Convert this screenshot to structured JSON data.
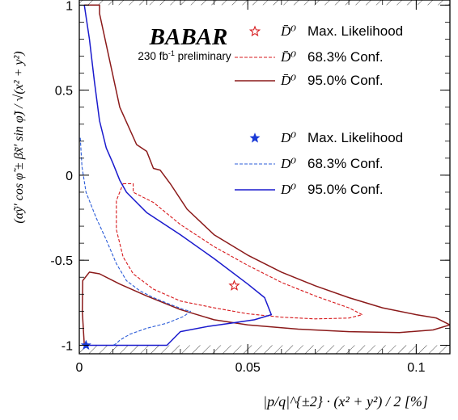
{
  "chart_data": {
    "type": "line",
    "xlabel": "|p/q|^{±2} · (x² + y²) / 2 [%]",
    "ylabel": "(αỹ′ cos φ̃ ± βx̃′ sin φ̃) / √(x² + y²)",
    "xlim": [
      0,
      0.11
    ],
    "ylim": [
      -1.05,
      1.03
    ],
    "x_ticks": [
      0,
      0.05,
      0.1
    ],
    "x_tick_labels": [
      "0",
      "0.05",
      "0.1"
    ],
    "y_ticks": [
      1,
      0.5,
      0,
      -0.5,
      -1
    ],
    "y_tick_labels": [
      "1",
      "0.5",
      "0",
      "-0.5",
      "-1"
    ],
    "grid": false,
    "physical_boundary_hatching": "y > 1 and y < -1",
    "logo": {
      "text": "BABAR",
      "subtitle_base": "230 fb",
      "subtitle_sup": "-1",
      "subtitle_rest": " preliminary"
    },
    "legend": [
      {
        "label_particle": "D̄⁰",
        "label_text": "Max. Likelihood",
        "marker": "open-star",
        "color": "#d7191c"
      },
      {
        "label_particle": "D̄⁰",
        "label_text": "68.3% Conf.",
        "style": "dashed",
        "color": "#d7191c"
      },
      {
        "label_particle": "D̄⁰",
        "label_text": "95.0% Conf.",
        "style": "solid",
        "color": "#8b1a1a"
      },
      {
        "label_particle": "D⁰",
        "label_text": "Max. Likelihood",
        "marker": "filled-star",
        "color": "#1a3ad7"
      },
      {
        "label_particle": "D⁰",
        "label_text": "68.3% Conf.",
        "style": "dashed",
        "color": "#2b5cd8"
      },
      {
        "label_particle": "D⁰",
        "label_text": "95.0% Conf.",
        "style": "solid",
        "color": "#1a1acd"
      }
    ],
    "series": [
      {
        "name": "D̄⁰ 95.0% Conf.",
        "color": "#8b1a1a",
        "style": "solid",
        "x": [
          0.0015,
          0.006,
          0.006,
          0.012,
          0.017,
          0.02,
          0.022,
          0.024,
          0.027,
          0.032,
          0.04,
          0.05,
          0.06,
          0.07,
          0.08,
          0.09,
          0.1,
          0.106,
          0.11,
          0.105,
          0.095,
          0.08,
          0.065,
          0.05,
          0.04,
          0.03,
          0.02,
          0.012,
          0.006,
          0.003,
          0.001,
          0.0009,
          0.0015
        ],
        "y": [
          1.0,
          1.0,
          0.95,
          0.4,
          0.18,
          0.14,
          0.04,
          0.03,
          -0.05,
          -0.2,
          -0.35,
          -0.47,
          -0.57,
          -0.65,
          -0.72,
          -0.78,
          -0.82,
          -0.84,
          -0.88,
          -0.91,
          -0.925,
          -0.92,
          -0.905,
          -0.88,
          -0.85,
          -0.79,
          -0.71,
          -0.64,
          -0.58,
          -0.57,
          -0.62,
          -0.8,
          -1.0
        ]
      },
      {
        "name": "D̄⁰ 68.3% Conf.",
        "color": "#d7191c",
        "style": "dashed",
        "x": [
          0.013,
          0.016,
          0.016,
          0.022,
          0.03,
          0.04,
          0.05,
          0.06,
          0.07,
          0.08,
          0.084,
          0.08,
          0.07,
          0.06,
          0.05,
          0.04,
          0.03,
          0.022,
          0.016,
          0.013,
          0.011,
          0.011,
          0.013
        ],
        "y": [
          -0.05,
          -0.05,
          -0.1,
          -0.16,
          -0.29,
          -0.42,
          -0.53,
          -0.63,
          -0.71,
          -0.78,
          -0.82,
          -0.84,
          -0.845,
          -0.835,
          -0.815,
          -0.78,
          -0.74,
          -0.67,
          -0.58,
          -0.48,
          -0.32,
          -0.15,
          -0.05
        ]
      },
      {
        "name": "D⁰ 95.0% Conf.",
        "color": "#1a1acd",
        "style": "solid",
        "x": [
          0.0015,
          0.003,
          0.0045,
          0.006,
          0.008,
          0.01,
          0.012,
          0.014,
          0.016,
          0.02,
          0.03,
          0.04,
          0.05,
          0.055,
          0.057,
          0.052,
          0.045,
          0.038,
          0.03,
          0.026,
          0.02,
          0.01,
          0.003,
          0.0015
        ],
        "y": [
          1.0,
          0.8,
          0.55,
          0.32,
          0.16,
          0.07,
          -0.03,
          -0.1,
          -0.14,
          -0.22,
          -0.35,
          -0.49,
          -0.64,
          -0.72,
          -0.82,
          -0.85,
          -0.87,
          -0.89,
          -0.92,
          -1.0,
          -1.0,
          -1.0,
          -1.0,
          -1.0
        ]
      },
      {
        "name": "D⁰ 68.3% Conf.",
        "color": "#2b5cd8",
        "style": "dashed",
        "x": [
          0.0003,
          0.0008,
          0.002,
          0.005,
          0.008,
          0.011,
          0.014,
          0.018,
          0.022,
          0.027,
          0.031,
          0.033,
          0.031,
          0.026,
          0.02,
          0.015,
          0.012,
          0.011,
          0.01
        ],
        "y": [
          0.22,
          0.05,
          -0.1,
          -0.25,
          -0.38,
          -0.52,
          -0.62,
          -0.68,
          -0.72,
          -0.76,
          -0.79,
          -0.8,
          -0.83,
          -0.87,
          -0.9,
          -0.935,
          -0.97,
          -0.99,
          -1.0
        ]
      }
    ],
    "points": [
      {
        "name": "D̄⁰ Max. Likelihood",
        "x": 0.046,
        "y": -0.65,
        "marker": "open-star",
        "color": "#d7191c"
      },
      {
        "name": "D⁰ Max. Likelihood",
        "x": 0.002,
        "y": -1.0,
        "marker": "filled-star",
        "color": "#1a3ad7"
      }
    ]
  }
}
